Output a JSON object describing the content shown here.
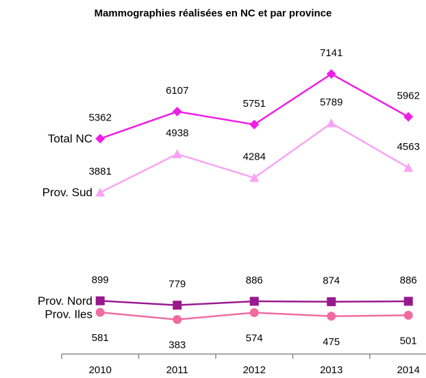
{
  "chart_data": {
    "type": "line",
    "title": "Mammographies réalisées en NC et par province",
    "categories": [
      "2010",
      "2011",
      "2012",
      "2013",
      "2014"
    ],
    "series": [
      {
        "name": "Total NC",
        "color": "#ee1ee6",
        "marker": "diamond",
        "values": [
          5362,
          6107,
          5751,
          7141,
          5962
        ]
      },
      {
        "name": "Prov. Sud",
        "color": "#f9a3f5",
        "marker": "triangle",
        "values": [
          3881,
          4938,
          4284,
          5789,
          4563
        ]
      },
      {
        "name": "Prov. Nord",
        "color": "#98198e",
        "marker": "square",
        "values": [
          899,
          779,
          886,
          874,
          886
        ]
      },
      {
        "name": "Prov. Iles",
        "color": "#f06ba0",
        "marker": "circle",
        "values": [
          581,
          383,
          574,
          475,
          501
        ]
      }
    ],
    "ylim": [
      0,
      7500
    ]
  }
}
